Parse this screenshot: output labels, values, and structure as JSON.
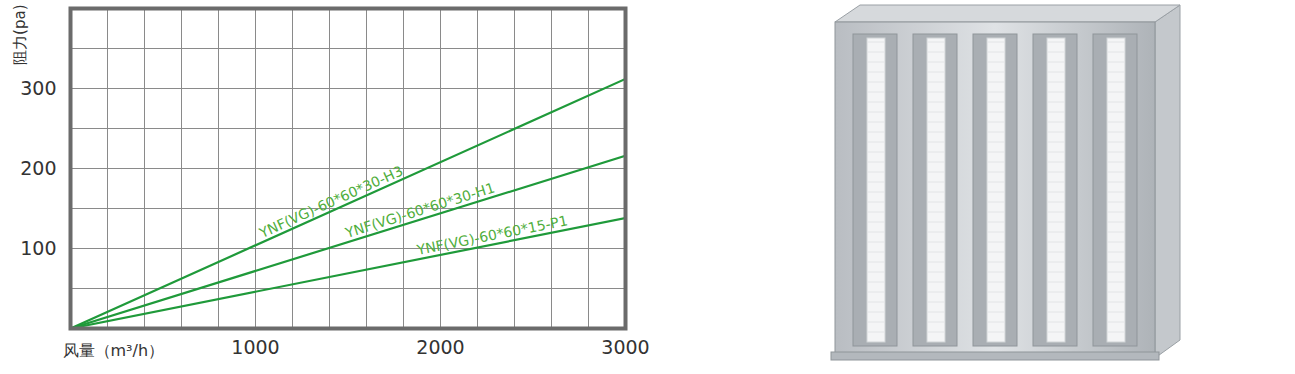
{
  "chart_data": {
    "type": "line",
    "x_label": "风量（m³/h）",
    "y_label": "阻力(pa)",
    "x": [
      0,
      3000
    ],
    "series": [
      {
        "name": "YNF(VG)-60*60*30-H3",
        "color": "#1f9a3a",
        "values": [
          0,
          312
        ]
      },
      {
        "name": "YNF(VG)-60*60*30-H1",
        "color": "#1f9a3a",
        "values": [
          0,
          216
        ]
      },
      {
        "name": "YNF(VG)-60*60*15-P1",
        "color": "#1f9a3a",
        "values": [
          0,
          138
        ]
      }
    ],
    "xlim": [
      0,
      3000
    ],
    "xticks": [
      1000,
      2000,
      3000
    ],
    "ylim": [
      0,
      400
    ],
    "yticks": [
      100,
      200,
      300
    ],
    "grid": true
  }
}
